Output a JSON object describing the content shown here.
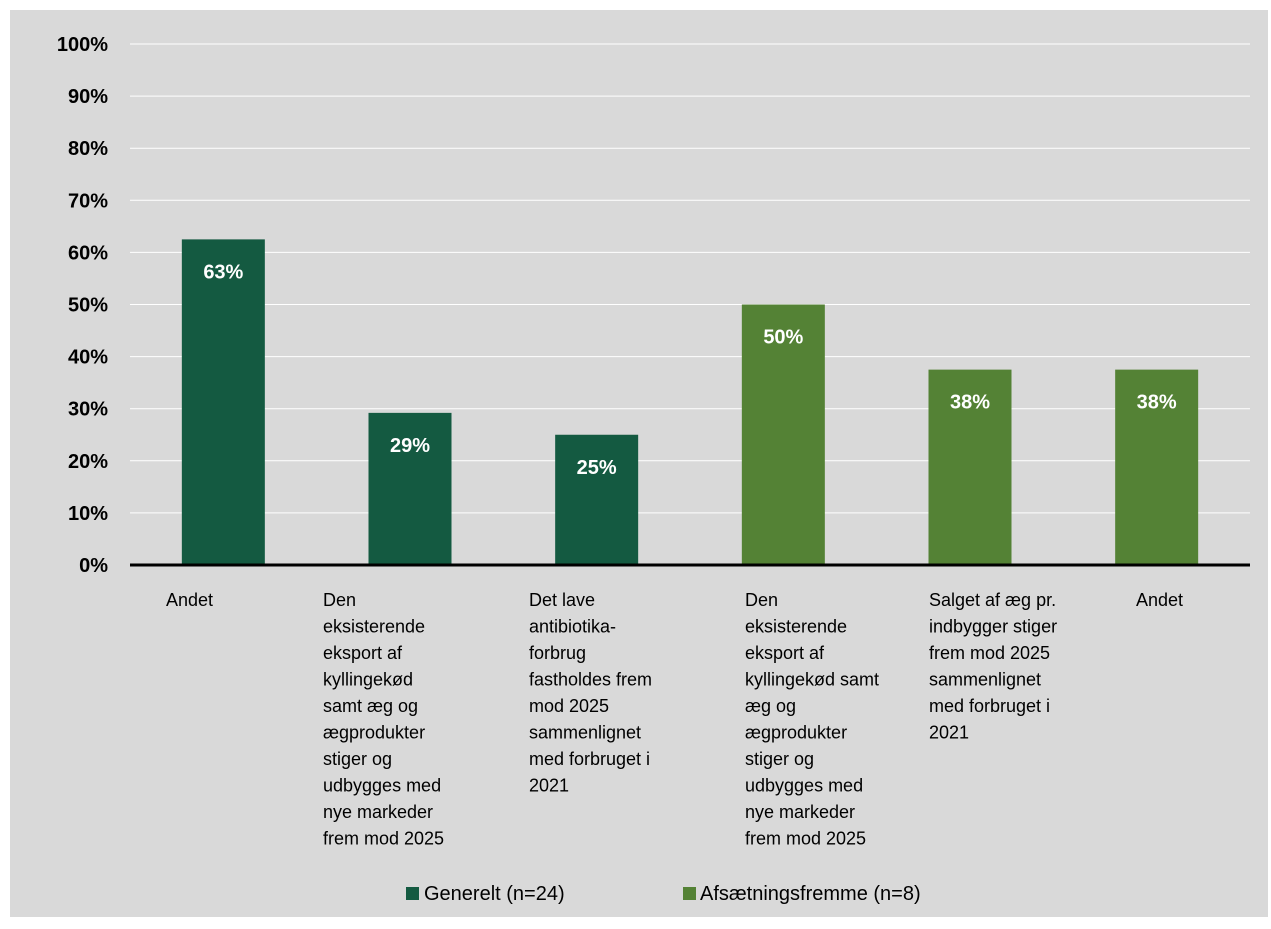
{
  "chart_data": {
    "type": "bar",
    "ylim": [
      0,
      100
    ],
    "yticks": [
      "0%",
      "10%",
      "20%",
      "30%",
      "40%",
      "50%",
      "60%",
      "70%",
      "80%",
      "90%",
      "100%"
    ],
    "grid": true,
    "legend_position": "bottom",
    "categories": [
      "Andet",
      "Den eksisterende eksport af kyllingekød samt æg og ægprodukter stiger og udbygges med nye markeder frem mod 2025",
      "Det lave antibiotika-forbrug fastholdes frem mod 2025 sammenlignet med forbruget i 2021",
      "Den eksisterende eksport af kyllingekød samt æg og ægprodukter stiger og udbygges med nye markeder frem mod 2025",
      "Salget af æg pr. indbygger stiger frem mod 2025 sammenlignet med forbruget i 2021",
      "Andet"
    ],
    "category_lines": [
      [
        "Andet"
      ],
      [
        "Den",
        "eksisterende",
        "eksport af",
        "kyllingekød",
        "samt æg og",
        "ægprodukter",
        "stiger og",
        "udbygges med",
        "nye markeder",
        "frem mod 2025"
      ],
      [
        "Det lave",
        "antibiotika-",
        "forbrug",
        "fastholdes frem",
        "mod 2025",
        "sammenlignet",
        "med forbruget i",
        "2021"
      ],
      [
        "Den",
        "eksisterende",
        "eksport af",
        "kyllingekød samt",
        "æg og",
        "ægprodukter",
        "stiger og",
        "udbygges med",
        "nye markeder",
        "frem mod 2025"
      ],
      [
        "Salget af æg pr.",
        "indbygger stiger",
        "frem mod 2025",
        "sammenlignet",
        "med forbruget i",
        "2021"
      ],
      [
        "Andet"
      ]
    ],
    "values": [
      62.5,
      29.2,
      25.0,
      50.0,
      37.5,
      37.5
    ],
    "value_labels": [
      "63%",
      "29%",
      "25%",
      "50%",
      "38%",
      "38%"
    ],
    "series_index": [
      0,
      0,
      0,
      1,
      1,
      1
    ],
    "series": [
      {
        "name": "Generelt (n=24)",
        "color": "#145a41"
      },
      {
        "name": "Afsætningsfremme (n=8)",
        "color": "#548235"
      }
    ]
  }
}
